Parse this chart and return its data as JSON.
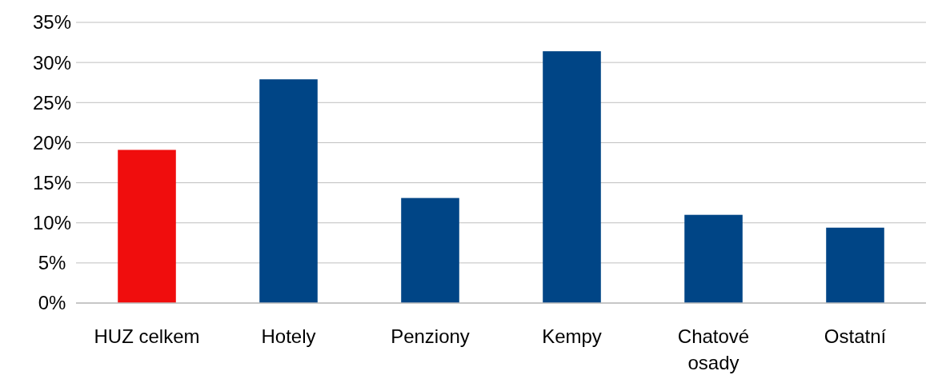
{
  "chart_data": {
    "type": "bar",
    "categories": [
      "HUZ celkem",
      "Hotely",
      "Penziony",
      "Kempy",
      "Chatové osady",
      "Ostatní"
    ],
    "values": [
      19.1,
      27.9,
      13.1,
      31.4,
      11.0,
      9.4
    ],
    "colors": [
      "#f00d0d",
      "#004586",
      "#004586",
      "#004586",
      "#004586",
      "#004586"
    ],
    "ylim": [
      0,
      35
    ],
    "yticks": [
      {
        "value": 0,
        "label": "0%"
      },
      {
        "value": 5,
        "label": "5%"
      },
      {
        "value": 10,
        "label": "10%"
      },
      {
        "value": 15,
        "label": "15%"
      },
      {
        "value": 20,
        "label": "20%"
      },
      {
        "value": 25,
        "label": "25%"
      },
      {
        "value": 30,
        "label": "30%"
      },
      {
        "value": 35,
        "label": "35%"
      }
    ],
    "grid": "y"
  }
}
